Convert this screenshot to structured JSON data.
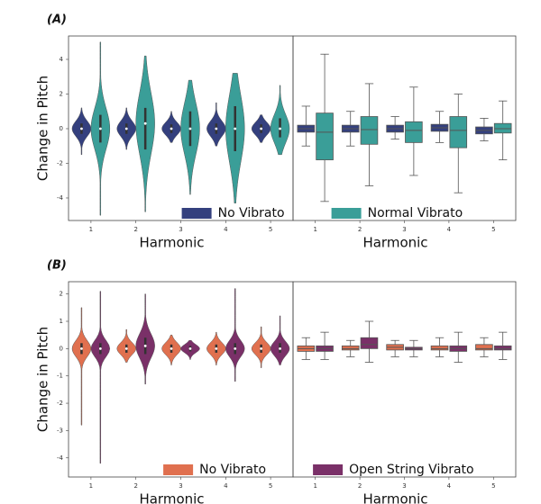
{
  "chart_data": [
    {
      "type": "violin",
      "title": "(A)",
      "ylabel": "Change in Pitch",
      "xlabel": "Harmonic",
      "legend": "lower center",
      "categories": [
        "1",
        "2",
        "3",
        "4",
        "5"
      ],
      "ylim": [
        -5.3,
        5.35
      ],
      "yticks": [
        -4,
        -2,
        0,
        2,
        4
      ],
      "series": [
        {
          "name": "No Vibrato",
          "color": "#34407e",
          "values": [
            {
              "min": -1.5,
              "q1": -0.3,
              "median": 0,
              "q3": 0.3,
              "max": 1.2
            },
            {
              "min": -1.2,
              "q1": -0.3,
              "median": 0,
              "q3": 0.3,
              "max": 1.2
            },
            {
              "min": -0.8,
              "q1": -0.25,
              "median": 0,
              "q3": 0.25,
              "max": 1.0
            },
            {
              "min": -1.0,
              "q1": -0.3,
              "median": 0,
              "q3": 0.3,
              "max": 1.5
            },
            {
              "min": -0.8,
              "q1": -0.25,
              "median": 0,
              "q3": 0.25,
              "max": 0.8
            }
          ]
        },
        {
          "name": "Normal Vibrato",
          "color": "#3a9e98",
          "values": [
            {
              "min": -5.0,
              "q1": -0.8,
              "median": 0,
              "q3": 0.8,
              "max": 5.0
            },
            {
              "min": -4.8,
              "q1": -1.2,
              "median": 0.3,
              "q3": 1.2,
              "max": 4.2
            },
            {
              "min": -3.8,
              "q1": -1.0,
              "median": 0,
              "q3": 1.0,
              "max": 2.8
            },
            {
              "min": -4.3,
              "q1": -1.3,
              "median": 0,
              "q3": 1.3,
              "max": 3.2
            },
            {
              "min": -1.5,
              "q1": -0.5,
              "median": 0,
              "q3": 0.6,
              "max": 2.5
            }
          ]
        }
      ]
    },
    {
      "type": "box",
      "xlabel": "Harmonic",
      "categories": [
        "1",
        "2",
        "3",
        "4",
        "5"
      ],
      "ylim": [
        -5.3,
        5.35
      ],
      "series": [
        {
          "color": "#34407e",
          "values": [
            {
              "min": -1.0,
              "q1": -0.2,
              "median": 0,
              "q3": 0.2,
              "max": 1.3
            },
            {
              "min": -1.0,
              "q1": -0.2,
              "median": 0,
              "q3": 0.2,
              "max": 1.0
            },
            {
              "min": -0.6,
              "q1": -0.2,
              "median": 0,
              "q3": 0.2,
              "max": 0.7
            },
            {
              "min": -0.8,
              "q1": -0.15,
              "median": 0.05,
              "q3": 0.25,
              "max": 1.0
            },
            {
              "min": -0.7,
              "q1": -0.3,
              "median": -0.1,
              "q3": 0.1,
              "max": 0.6
            }
          ]
        },
        {
          "color": "#3a9e98",
          "values": [
            {
              "min": -4.2,
              "q1": -1.8,
              "median": -0.2,
              "q3": 0.9,
              "max": 4.3
            },
            {
              "min": -3.3,
              "q1": -0.9,
              "median": -0.05,
              "q3": 0.7,
              "max": 2.6
            },
            {
              "min": -2.7,
              "q1": -0.8,
              "median": -0.1,
              "q3": 0.4,
              "max": 2.4
            },
            {
              "min": -3.7,
              "q1": -1.1,
              "median": -0.1,
              "q3": 0.7,
              "max": 2.0
            },
            {
              "min": -1.8,
              "q1": -0.25,
              "median": 0,
              "q3": 0.3,
              "max": 1.6
            }
          ]
        }
      ]
    },
    {
      "type": "violin",
      "title": "(B)",
      "ylabel": "Change in Pitch",
      "xlabel": "Harmonic",
      "legend": "lower center",
      "categories": [
        "1",
        "2",
        "3",
        "4",
        "5"
      ],
      "ylim": [
        -4.7,
        2.45
      ],
      "yticks": [
        -4,
        -3,
        -2,
        -1,
        0,
        1,
        2
      ],
      "series": [
        {
          "name": "No Vibrato",
          "color": "#e0704f",
          "values": [
            {
              "min": -2.8,
              "q1": -0.2,
              "median": 0,
              "q3": 0.2,
              "max": 1.5
            },
            {
              "min": -0.5,
              "q1": -0.15,
              "median": 0,
              "q3": 0.15,
              "max": 0.7
            },
            {
              "min": -0.6,
              "q1": -0.15,
              "median": 0,
              "q3": 0.15,
              "max": 0.5
            },
            {
              "min": -0.6,
              "q1": -0.15,
              "median": 0,
              "q3": 0.15,
              "max": 0.6
            },
            {
              "min": -0.7,
              "q1": -0.15,
              "median": 0,
              "q3": 0.15,
              "max": 0.8
            }
          ]
        },
        {
          "name": "Open String Vibrato",
          "color": "#7a3068",
          "values": [
            {
              "min": -4.2,
              "q1": -0.2,
              "median": 0,
              "q3": 0.2,
              "max": 2.1
            },
            {
              "min": -1.3,
              "q1": -0.2,
              "median": 0.1,
              "q3": 0.4,
              "max": 2.0
            },
            {
              "min": -0.4,
              "q1": -0.1,
              "median": 0,
              "q3": 0.1,
              "max": 0.3
            },
            {
              "min": -1.2,
              "q1": -0.2,
              "median": 0,
              "q3": 0.2,
              "max": 2.2
            },
            {
              "min": -0.6,
              "q1": -0.15,
              "median": 0,
              "q3": 0.2,
              "max": 1.2
            }
          ]
        }
      ]
    },
    {
      "type": "box",
      "xlabel": "Harmonic",
      "categories": [
        "1",
        "2",
        "3",
        "4",
        "5"
      ],
      "ylim": [
        -4.7,
        2.45
      ],
      "series": [
        {
          "color": "#e0704f",
          "values": [
            {
              "min": -0.4,
              "q1": -0.1,
              "median": 0,
              "q3": 0.1,
              "max": 0.4
            },
            {
              "min": -0.3,
              "q1": -0.05,
              "median": 0,
              "q3": 0.1,
              "max": 0.3
            },
            {
              "min": -0.3,
              "q1": -0.05,
              "median": 0.05,
              "q3": 0.15,
              "max": 0.3
            },
            {
              "min": -0.3,
              "q1": -0.05,
              "median": 0,
              "q3": 0.1,
              "max": 0.4
            },
            {
              "min": -0.3,
              "q1": -0.05,
              "median": 0,
              "q3": 0.15,
              "max": 0.4
            }
          ]
        },
        {
          "color": "#7a3068",
          "values": [
            {
              "min": -0.4,
              "q1": -0.1,
              "median": 0,
              "q3": 0.1,
              "max": 0.6
            },
            {
              "min": -0.5,
              "q1": 0,
              "median": 0.15,
              "q3": 0.4,
              "max": 1.0
            },
            {
              "min": -0.3,
              "q1": -0.05,
              "median": 0,
              "q3": 0.05,
              "max": 0.3
            },
            {
              "min": -0.5,
              "q1": -0.1,
              "median": 0,
              "q3": 0.1,
              "max": 0.6
            },
            {
              "min": -0.4,
              "q1": -0.05,
              "median": 0,
              "q3": 0.1,
              "max": 0.6
            }
          ]
        }
      ]
    }
  ]
}
